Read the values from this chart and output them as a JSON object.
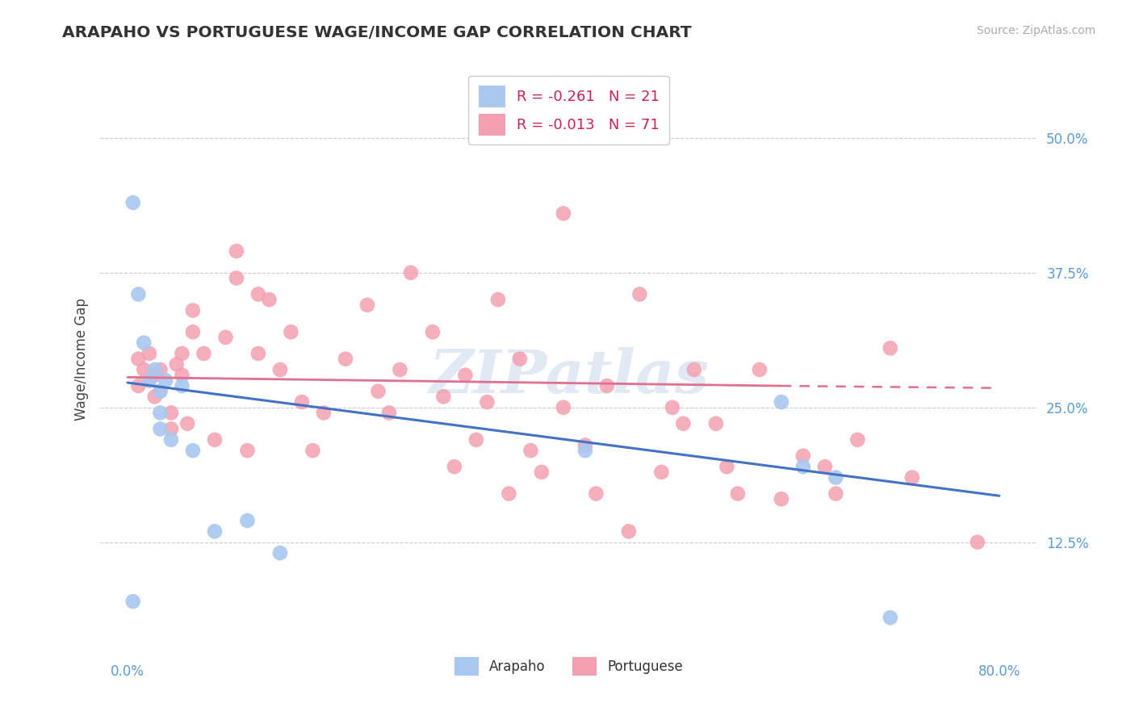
{
  "title": "ARAPAHO VS PORTUGUESE WAGE/INCOME GAP CORRELATION CHART",
  "source_text": "Source: ZipAtlas.com",
  "ylabel": "Wage/Income Gap",
  "x_ticks": [
    0.0,
    0.1,
    0.2,
    0.3,
    0.4,
    0.5,
    0.6,
    0.7,
    0.8
  ],
  "x_tick_labels": [
    "0.0%",
    "",
    "",
    "",
    "",
    "",
    "",
    "",
    "80.0%"
  ],
  "y_ticks": [
    0.125,
    0.25,
    0.375,
    0.5
  ],
  "y_tick_labels": [
    "12.5%",
    "25.0%",
    "37.5%",
    "50.0%"
  ],
  "xlim": [
    -0.025,
    0.835
  ],
  "ylim": [
    0.02,
    0.57
  ],
  "arapaho_color": "#a8c8f0",
  "portuguese_color": "#f4a0b0",
  "arapaho_line_color": "#4472c4",
  "portuguese_line_color": "#e07090",
  "legend_r_arapaho": "R = -0.261",
  "legend_n_arapaho": "N = 21",
  "legend_r_portuguese": "R = -0.013",
  "legend_n_portuguese": "N = 71",
  "watermark": "ZIPatlas",
  "arapaho_x": [
    0.005,
    0.01,
    0.015,
    0.02,
    0.025,
    0.03,
    0.03,
    0.035,
    0.04,
    0.05,
    0.06,
    0.08,
    0.11,
    0.14,
    0.42,
    0.6,
    0.62,
    0.65,
    0.7,
    0.005,
    0.03
  ],
  "arapaho_y": [
    0.44,
    0.355,
    0.31,
    0.275,
    0.285,
    0.265,
    0.245,
    0.275,
    0.22,
    0.27,
    0.21,
    0.135,
    0.145,
    0.115,
    0.21,
    0.255,
    0.195,
    0.185,
    0.055,
    0.07,
    0.23
  ],
  "portuguese_x": [
    0.01,
    0.015,
    0.02,
    0.02,
    0.025,
    0.025,
    0.03,
    0.03,
    0.04,
    0.04,
    0.045,
    0.05,
    0.05,
    0.055,
    0.06,
    0.06,
    0.07,
    0.08,
    0.09,
    0.1,
    0.1,
    0.11,
    0.12,
    0.12,
    0.13,
    0.14,
    0.15,
    0.16,
    0.17,
    0.18,
    0.2,
    0.22,
    0.23,
    0.24,
    0.25,
    0.26,
    0.28,
    0.29,
    0.3,
    0.31,
    0.32,
    0.33,
    0.34,
    0.35,
    0.36,
    0.37,
    0.38,
    0.4,
    0.4,
    0.42,
    0.43,
    0.44,
    0.46,
    0.47,
    0.49,
    0.5,
    0.51,
    0.52,
    0.54,
    0.55,
    0.56,
    0.58,
    0.6,
    0.62,
    0.64,
    0.65,
    0.67,
    0.7,
    0.72,
    0.78,
    0.01
  ],
  "portuguese_y": [
    0.295,
    0.285,
    0.275,
    0.3,
    0.28,
    0.26,
    0.285,
    0.265,
    0.245,
    0.23,
    0.29,
    0.28,
    0.3,
    0.235,
    0.34,
    0.32,
    0.3,
    0.22,
    0.315,
    0.37,
    0.395,
    0.21,
    0.355,
    0.3,
    0.35,
    0.285,
    0.32,
    0.255,
    0.21,
    0.245,
    0.295,
    0.345,
    0.265,
    0.245,
    0.285,
    0.375,
    0.32,
    0.26,
    0.195,
    0.28,
    0.22,
    0.255,
    0.35,
    0.17,
    0.295,
    0.21,
    0.19,
    0.25,
    0.43,
    0.215,
    0.17,
    0.27,
    0.135,
    0.355,
    0.19,
    0.25,
    0.235,
    0.285,
    0.235,
    0.195,
    0.17,
    0.285,
    0.165,
    0.205,
    0.195,
    0.17,
    0.22,
    0.305,
    0.185,
    0.125,
    0.27
  ],
  "arapaho_line_x0": 0.0,
  "arapaho_line_y0": 0.273,
  "arapaho_line_x1": 0.8,
  "arapaho_line_y1": 0.168,
  "portuguese_line_x0": 0.0,
  "portuguese_line_y0": 0.278,
  "portuguese_line_x1_solid": 0.6,
  "portuguese_line_y1_solid": 0.27,
  "portuguese_line_x1_dash": 0.8,
  "portuguese_line_y1_dash": 0.268
}
